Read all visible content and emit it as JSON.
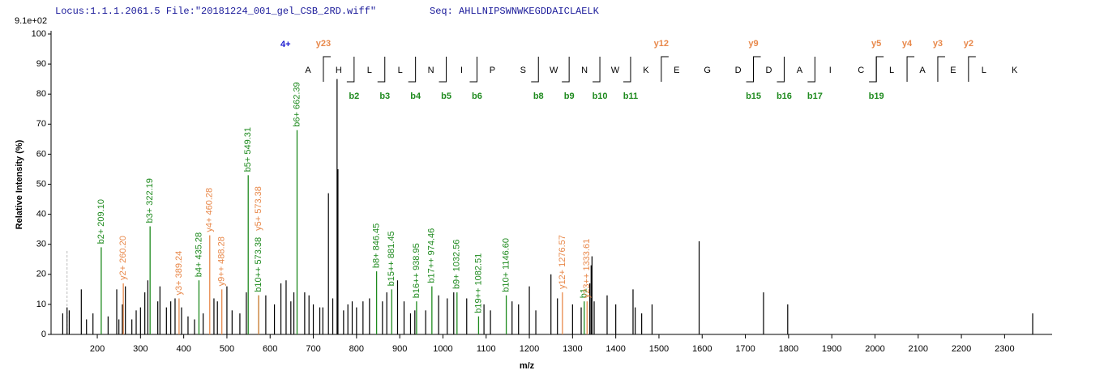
{
  "chart_data": {
    "type": "spectrum",
    "locus": "Locus:1.1.1.2061.5 File:\"20181224_001_gel_CSB_2RD.wiff\"",
    "seq_label": "Seq: AHLLNIPSWNWKEGDDAICLAELK",
    "scale_label": "9.1e+02",
    "x_label": "m/z",
    "y_label": "Relative   Intensity (%)",
    "xlim": [
      93,
      2410
    ],
    "ylim": [
      0,
      100
    ],
    "xticks": [
      200,
      300,
      400,
      500,
      600,
      700,
      800,
      900,
      1000,
      1100,
      1200,
      1300,
      1400,
      1500,
      1600,
      1700,
      1800,
      1900,
      2000,
      2100,
      2200,
      2300
    ],
    "yticks": [
      0,
      10,
      20,
      30,
      40,
      50,
      60,
      70,
      80,
      90,
      100
    ],
    "peak_color": "#000000",
    "ion_colors": {
      "b": "#1e8a1e",
      "y": "#e8884a"
    },
    "dashed_peaks": {
      "mz": [
        130
      ],
      "intensity": [
        28
      ],
      "color": "#bbbbbb"
    },
    "peaks": {
      "mz": [
        120,
        130,
        135,
        163,
        175,
        190,
        225,
        245,
        250,
        258,
        265,
        280,
        290,
        300,
        310,
        317,
        340,
        345,
        360,
        370,
        380,
        395,
        410,
        425,
        445,
        470,
        478,
        500,
        512,
        530,
        545,
        590,
        610,
        625,
        637,
        648,
        655,
        680,
        690,
        700,
        715,
        722,
        735,
        745,
        755,
        757,
        770,
        780,
        790,
        800,
        815,
        830,
        860,
        870,
        895,
        910,
        925,
        935,
        960,
        990,
        1010,
        1025,
        1055,
        1095,
        1110,
        1160,
        1175,
        1200,
        1215,
        1250,
        1265,
        1300,
        1320,
        1340,
        1343,
        1345,
        1350,
        1380,
        1400,
        1440,
        1445,
        1460,
        1484,
        1593,
        1742,
        1798,
        2365
      ],
      "intensity": [
        7,
        9,
        8,
        15,
        5,
        7,
        6,
        15,
        5,
        10,
        16,
        5,
        8,
        9,
        14,
        18,
        11,
        16,
        9,
        11,
        12,
        9,
        6,
        5,
        7,
        12,
        11,
        16,
        8,
        7,
        14,
        13,
        10,
        17,
        18,
        11,
        14,
        14,
        13,
        10,
        9,
        9,
        47,
        12,
        85,
        55,
        8,
        10,
        11,
        9,
        11,
        12,
        11,
        14,
        18,
        11,
        7,
        8,
        8,
        13,
        12,
        14,
        12,
        10,
        8,
        11,
        10,
        16,
        8,
        20,
        12,
        10,
        9,
        17,
        23,
        26,
        11,
        13,
        10,
        15,
        9,
        7,
        10,
        31,
        14,
        10,
        7
      ]
    },
    "annotations": [
      {
        "mz": 209.1,
        "intensity": 29,
        "ion": "b",
        "label": "b2+ 209.10"
      },
      {
        "mz": 260.2,
        "intensity": 17,
        "ion": "y",
        "label": "y2+ 260.20"
      },
      {
        "mz": 322.19,
        "intensity": 36,
        "ion": "b",
        "label": "b3+ 322.19"
      },
      {
        "mz": 389.24,
        "intensity": 12,
        "ion": "y",
        "label": "y3+ 389.24"
      },
      {
        "mz": 435.28,
        "intensity": 18,
        "ion": "b",
        "label": "b4+ 435.28"
      },
      {
        "mz": 460.28,
        "intensity": 33,
        "ion": "y",
        "label": "y4+ 460.28"
      },
      {
        "mz": 488.28,
        "intensity": 15,
        "ion": "y",
        "label": "y9++ 488.28"
      },
      {
        "mz": 549.31,
        "intensity": 53,
        "ion": "b",
        "label": "b5+ 549.31"
      },
      {
        "mz": 573.38,
        "intensity": 13,
        "ion": "b",
        "label": "b10++ 573.38"
      },
      {
        "mz": 573.38,
        "intensity": 13,
        "ion": "y",
        "label": "y5+ 573.38"
      },
      {
        "mz": 662.39,
        "intensity": 68,
        "ion": "b",
        "label": "b6+ 662.39"
      },
      {
        "mz": 846.45,
        "intensity": 21,
        "ion": "b",
        "label": "b8+ 846.45"
      },
      {
        "mz": 881.45,
        "intensity": 15,
        "ion": "b",
        "label": "b15++ 881.45"
      },
      {
        "mz": 938.95,
        "intensity": 11,
        "ion": "b",
        "label": "b16++ 938.95"
      },
      {
        "mz": 974.46,
        "intensity": 16,
        "ion": "b",
        "label": "b17++ 974.46"
      },
      {
        "mz": 1032.56,
        "intensity": 14,
        "ion": "b",
        "label": "b9+ 1032.56"
      },
      {
        "mz": 1082.51,
        "intensity": 6,
        "ion": "b",
        "label": "b19++ 1082.51"
      },
      {
        "mz": 1146.6,
        "intensity": 13,
        "ion": "b",
        "label": "b10+ 1146.60"
      },
      {
        "mz": 1276.57,
        "intensity": 14,
        "ion": "y",
        "label": "y12+ 1276.57"
      },
      {
        "mz": 1327,
        "intensity": 11,
        "ion": "b",
        "label": "b1"
      },
      {
        "mz": 1333.61,
        "intensity": 11,
        "ion": "y",
        "label": "y23++ 1333.61"
      }
    ],
    "sequence": {
      "charge": "4+",
      "residues": [
        "A",
        "H",
        "L",
        "L",
        "N",
        "I",
        "P",
        "S",
        "W",
        "N",
        "W",
        "K",
        "E",
        "G",
        "D",
        "D",
        "A",
        "I",
        "C",
        "L",
        "A",
        "E",
        "L",
        "K"
      ],
      "b_ions": [
        {
          "position": 2,
          "label": "b2"
        },
        {
          "position": 3,
          "label": "b3"
        },
        {
          "position": 4,
          "label": "b4"
        },
        {
          "position": 5,
          "label": "b5"
        },
        {
          "position": 6,
          "label": "b6"
        },
        {
          "position": 8,
          "label": "b8"
        },
        {
          "position": 9,
          "label": "b9"
        },
        {
          "position": 10,
          "label": "b10"
        },
        {
          "position": 11,
          "label": "b11"
        },
        {
          "position": 15,
          "label": "b15"
        },
        {
          "position": 16,
          "label": "b16"
        },
        {
          "position": 17,
          "label": "b17"
        },
        {
          "position": 19,
          "label": "b19"
        }
      ],
      "y_ions": [
        {
          "position": 23,
          "label": "y23"
        },
        {
          "position": 12,
          "label": "y12"
        },
        {
          "position": 9,
          "label": "y9"
        },
        {
          "position": 5,
          "label": "y5"
        },
        {
          "position": 4,
          "label": "y4"
        },
        {
          "position": 3,
          "label": "y3"
        },
        {
          "position": 2,
          "label": "y2"
        }
      ]
    }
  }
}
